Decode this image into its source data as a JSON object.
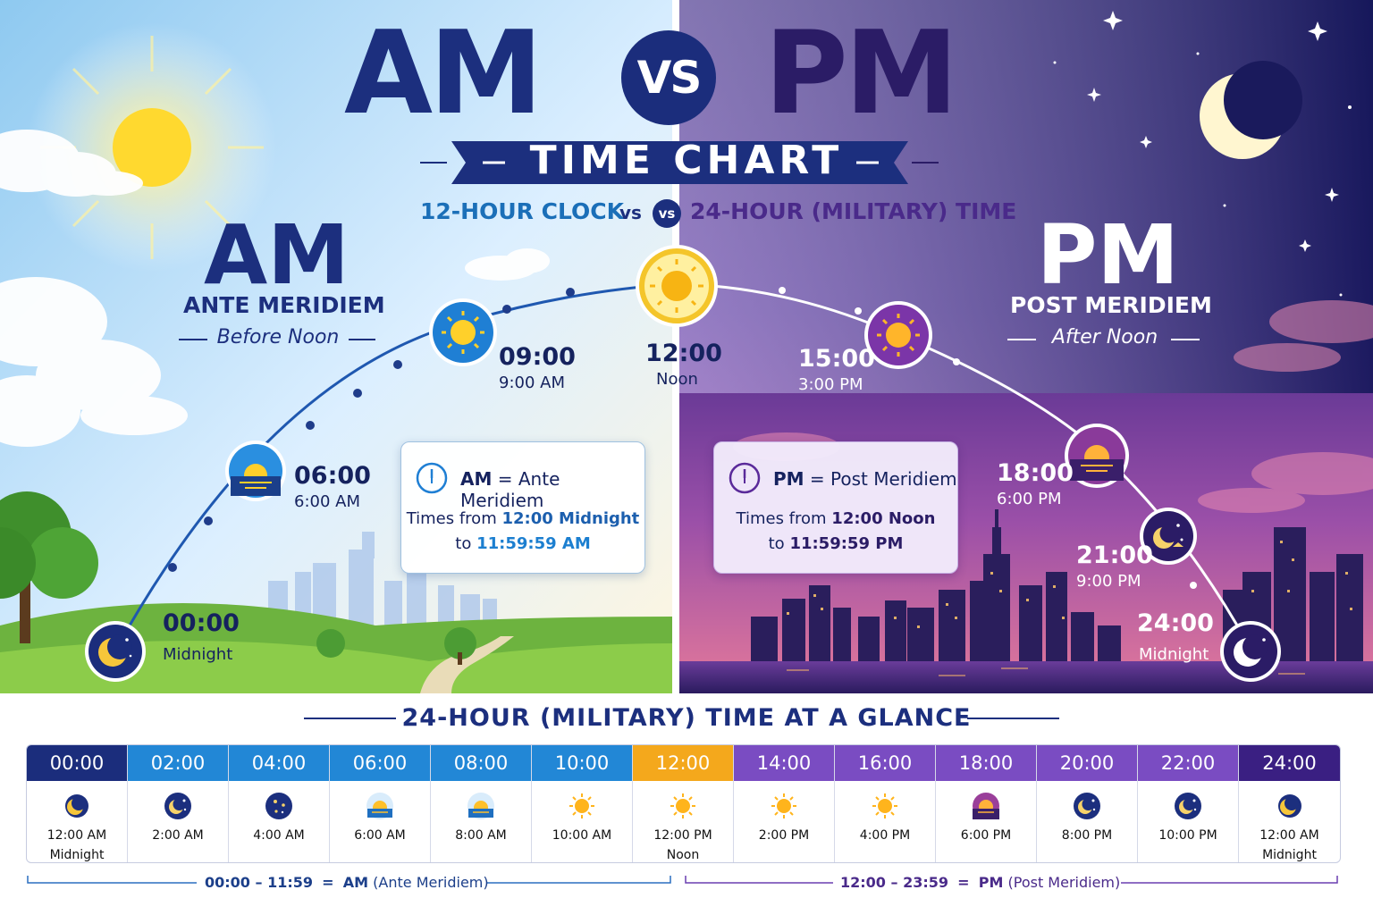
{
  "header": {
    "title_am": "AM",
    "title_vs": "VS",
    "title_pm": "PM",
    "ribbon": "TIME CHART",
    "subtitle_left": "12-HOUR CLOCK",
    "subtitle_vs_text": "vs",
    "subtitle_vs_badge": "vs",
    "subtitle_right": "24-HOUR (MILITARY) TIME"
  },
  "am_side": {
    "abbr": "AM",
    "name": "ANTE MERIDIEM",
    "meaning": "Before Noon",
    "card": {
      "label": "AM",
      "equals": "=",
      "term": "Ante Meridiem",
      "line1_prefix": "Times from",
      "line1_value": "12:00 Midnight",
      "line2_prefix": "to",
      "line2_value": "11:59:59 AM"
    }
  },
  "pm_side": {
    "abbr": "PM",
    "name": "POST MERIDIEM",
    "meaning": "After Noon",
    "card": {
      "label": "PM",
      "equals": "=",
      "term": "Post Meridiem",
      "line1_prefix": "Times from",
      "line1_value": "12:00 Noon",
      "line2_prefix": "to",
      "line2_value": "11:59:59 PM"
    }
  },
  "arc_markers": [
    {
      "military": "00:00",
      "label": "Midnight",
      "icon": "moon-icon"
    },
    {
      "military": "06:00",
      "label": "6:00 AM",
      "icon": "sunrise-icon"
    },
    {
      "military": "09:00",
      "label": "9:00 AM",
      "icon": "sun-icon"
    },
    {
      "military": "12:00",
      "label": "Noon",
      "icon": "sun-icon"
    },
    {
      "military": "15:00",
      "label": "3:00 PM",
      "icon": "sun-icon"
    },
    {
      "military": "18:00",
      "label": "6:00 PM",
      "icon": "sunset-icon"
    },
    {
      "military": "21:00",
      "label": "9:00 PM",
      "icon": "moon-stars-icon"
    },
    {
      "military": "24:00",
      "label": "Midnight",
      "icon": "moon-icon"
    }
  ],
  "glance": {
    "title": "24-HOUR (MILITARY) TIME AT A GLANCE",
    "columns": [
      {
        "military": "00:00",
        "standard": "12:00 AM",
        "note": "Midnight",
        "icon": "moon-icon",
        "color": "#1b2d7c"
      },
      {
        "military": "02:00",
        "standard": "2:00 AM",
        "note": "",
        "icon": "moon-stars-icon",
        "color": "#2287d6"
      },
      {
        "military": "04:00",
        "standard": "4:00 AM",
        "note": "",
        "icon": "stars-icon",
        "color": "#2287d6"
      },
      {
        "military": "06:00",
        "standard": "6:00 AM",
        "note": "",
        "icon": "sunrise-icon",
        "color": "#2287d6"
      },
      {
        "military": "08:00",
        "standard": "8:00 AM",
        "note": "",
        "icon": "sunrise-icon",
        "color": "#2287d6"
      },
      {
        "military": "10:00",
        "standard": "10:00 AM",
        "note": "",
        "icon": "sun-icon",
        "color": "#2287d6"
      },
      {
        "military": "12:00",
        "standard": "12:00 PM",
        "note": "Noon",
        "icon": "sun-icon",
        "color": "#f4a81c"
      },
      {
        "military": "14:00",
        "standard": "2:00 PM",
        "note": "",
        "icon": "sun-icon",
        "color": "#7a4cc2"
      },
      {
        "military": "16:00",
        "standard": "4:00 PM",
        "note": "",
        "icon": "sun-icon",
        "color": "#7a4cc2"
      },
      {
        "military": "18:00",
        "standard": "6:00 PM",
        "note": "",
        "icon": "sunset-icon",
        "color": "#7a4cc2"
      },
      {
        "military": "20:00",
        "standard": "8:00 PM",
        "note": "",
        "icon": "moon-stars-icon",
        "color": "#7a4cc2"
      },
      {
        "military": "22:00",
        "standard": "10:00 PM",
        "note": "",
        "icon": "moon-stars-icon",
        "color": "#7a4cc2"
      },
      {
        "military": "24:00",
        "standard": "12:00 AM",
        "note": "Midnight",
        "icon": "moon-icon",
        "color": "#3a1f82"
      }
    ],
    "bracket_am": {
      "range": "00:00 – 11:59",
      "equals": "=",
      "abbr": "AM",
      "term": "(Ante Meridiem)"
    },
    "bracket_pm": {
      "range": "12:00 – 23:59",
      "equals": "=",
      "abbr": "PM",
      "term": "(Post Meridiem)"
    }
  },
  "colors": {
    "navy": "#1c2f7e",
    "purple": "#2b1c66",
    "am_blue": "#2287d6",
    "noon_gold": "#f4a81c",
    "pm_purple": "#7a4cc2"
  }
}
